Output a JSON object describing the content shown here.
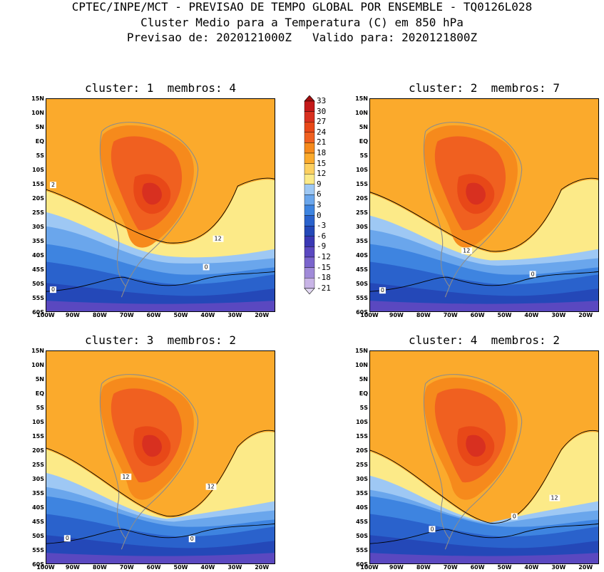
{
  "header": {
    "line1": "CPTEC/INPE/MCT - PREVISAO DE TEMPO GLOBAL POR ENSEMBLE - TQ0126L028",
    "line2": "Cluster Medio para a Temperatura (C) em 850 hPa",
    "line3": "Previsao de: 2020121000Z   Valido para: 2020121800Z"
  },
  "lat_ticks": [
    "15N",
    "10N",
    "5N",
    "EQ",
    "5S",
    "10S",
    "15S",
    "20S",
    "25S",
    "30S",
    "35S",
    "40S",
    "45S",
    "50S",
    "55S",
    "60S"
  ],
  "lon_ticks": [
    "100W",
    "90W",
    "80W",
    "70W",
    "60W",
    "50W",
    "40W",
    "30W",
    "20W"
  ],
  "colorbar": {
    "labels": [
      "33",
      "30",
      "27",
      "24",
      "21",
      "18",
      "15",
      "12",
      "9",
      "6",
      "3",
      "0",
      "-3",
      "-6",
      "-9",
      "-12",
      "-15",
      "-18",
      "-21"
    ],
    "colors": [
      "#a01010",
      "#c41a1a",
      "#d83020",
      "#e84818",
      "#f06020",
      "#f68a1c",
      "#fbaa2c",
      "#fdd060",
      "#fcea88",
      "#9ec8f4",
      "#6aa6ec",
      "#3e84e0",
      "#2a62cc",
      "#2448b8",
      "#3a38b4",
      "#5a48c0",
      "#7a64cc",
      "#a08ad8",
      "#c8b4e6",
      "#e2d8f2"
    ]
  },
  "panels": [
    {
      "title": "cluster: 1  membros: 4",
      "labels": [
        "2",
        "12",
        "0",
        "0"
      ]
    },
    {
      "title": "cluster: 2  membros: 7",
      "labels": [
        "12",
        "0",
        "0"
      ]
    },
    {
      "title": "cluster: 3  membros: 2",
      "labels": [
        "12",
        "12",
        "0",
        "0"
      ]
    },
    {
      "title": "cluster: 4  membros: 2",
      "labels": [
        "12",
        "0",
        "0"
      ]
    }
  ]
}
